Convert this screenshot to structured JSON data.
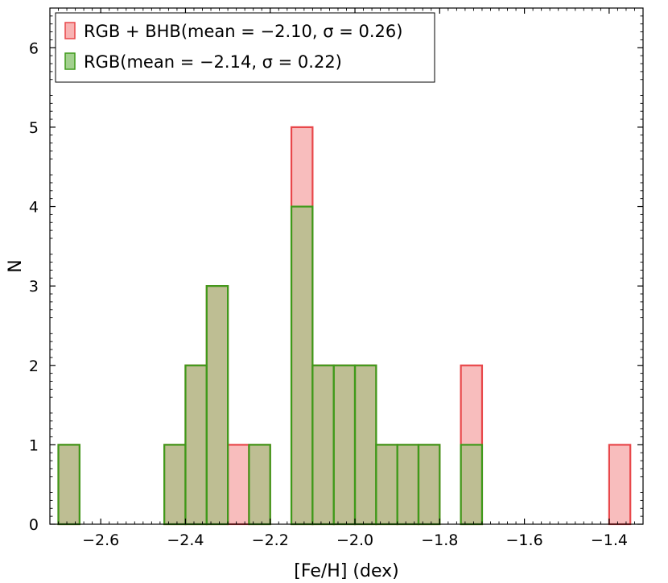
{
  "chart_data": {
    "type": "bar",
    "xlabel": "[Fe/H] (dex)",
    "ylabel": "N",
    "xlim": [
      -2.72,
      -1.32
    ],
    "ylim": [
      0,
      6.5
    ],
    "bin_width": 0.05,
    "x_ticks": [
      {
        "value": -2.6,
        "label": "−2.6"
      },
      {
        "value": -2.4,
        "label": "−2.4"
      },
      {
        "value": -2.2,
        "label": "−2.2"
      },
      {
        "value": -2.0,
        "label": "−2.0"
      },
      {
        "value": -1.8,
        "label": "−1.8"
      },
      {
        "value": -1.6,
        "label": "−1.6"
      },
      {
        "value": -1.4,
        "label": "−1.4"
      }
    ],
    "y_ticks": [
      {
        "value": 0,
        "label": "0"
      },
      {
        "value": 1,
        "label": "1"
      },
      {
        "value": 2,
        "label": "2"
      },
      {
        "value": 3,
        "label": "3"
      },
      {
        "value": 4,
        "label": "4"
      },
      {
        "value": 5,
        "label": "5"
      },
      {
        "value": 6,
        "label": "6"
      }
    ],
    "legend_position": "top-left",
    "series": [
      {
        "name": "RGB + BHB(mean = −2.10, σ = 0.26)",
        "fill": "#f59a9a",
        "stroke": "#e8474a",
        "bins": [
          {
            "left": -2.7,
            "count": 1
          },
          {
            "left": -2.45,
            "count": 1
          },
          {
            "left": -2.4,
            "count": 2
          },
          {
            "left": -2.35,
            "count": 3
          },
          {
            "left": -2.3,
            "count": 1
          },
          {
            "left": -2.25,
            "count": 1
          },
          {
            "left": -2.15,
            "count": 5
          },
          {
            "left": -2.1,
            "count": 2
          },
          {
            "left": -2.05,
            "count": 2
          },
          {
            "left": -2.0,
            "count": 2
          },
          {
            "left": -1.95,
            "count": 1
          },
          {
            "left": -1.9,
            "count": 1
          },
          {
            "left": -1.85,
            "count": 1
          },
          {
            "left": -1.75,
            "count": 2
          },
          {
            "left": -1.4,
            "count": 1
          }
        ]
      },
      {
        "name": "RGB(mean = −2.14, σ = 0.22)",
        "fill": "#84c06a",
        "stroke": "#3e9a1a",
        "bins": [
          {
            "left": -2.7,
            "count": 1
          },
          {
            "left": -2.45,
            "count": 1
          },
          {
            "left": -2.4,
            "count": 2
          },
          {
            "left": -2.35,
            "count": 3
          },
          {
            "left": -2.25,
            "count": 1
          },
          {
            "left": -2.15,
            "count": 4
          },
          {
            "left": -2.1,
            "count": 2
          },
          {
            "left": -2.05,
            "count": 2
          },
          {
            "left": -2.0,
            "count": 2
          },
          {
            "left": -1.95,
            "count": 1
          },
          {
            "left": -1.9,
            "count": 1
          },
          {
            "left": -1.85,
            "count": 1
          },
          {
            "left": -1.75,
            "count": 1
          }
        ]
      }
    ]
  }
}
